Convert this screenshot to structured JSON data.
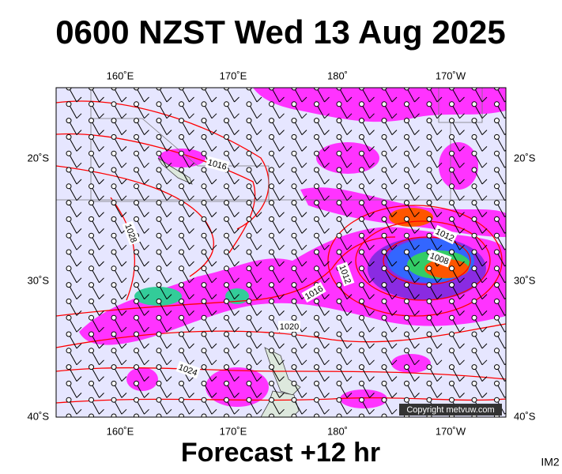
{
  "header": {
    "title": "0600 NZST Wed 13 Aug 2025"
  },
  "map": {
    "top_labels": [
      "160˚E",
      "170˚E",
      "180˚",
      "170˚W"
    ],
    "bottom_labels": [
      "160˚E",
      "170˚E",
      "180˚",
      "170˚W"
    ],
    "left_labels": [
      "20˚S",
      "30˚S",
      "40˚S"
    ],
    "right_labels": [
      "20˚S",
      "30˚S",
      "40˚S"
    ],
    "isobar_labels": [
      "1016",
      "1028",
      "1012",
      "1008",
      "1012",
      "1016",
      "1020",
      "1024"
    ],
    "copyright": "Copyright metvuw.com"
  },
  "footer": {
    "forecast": "Forecast +12 hr",
    "code": "IM2"
  }
}
